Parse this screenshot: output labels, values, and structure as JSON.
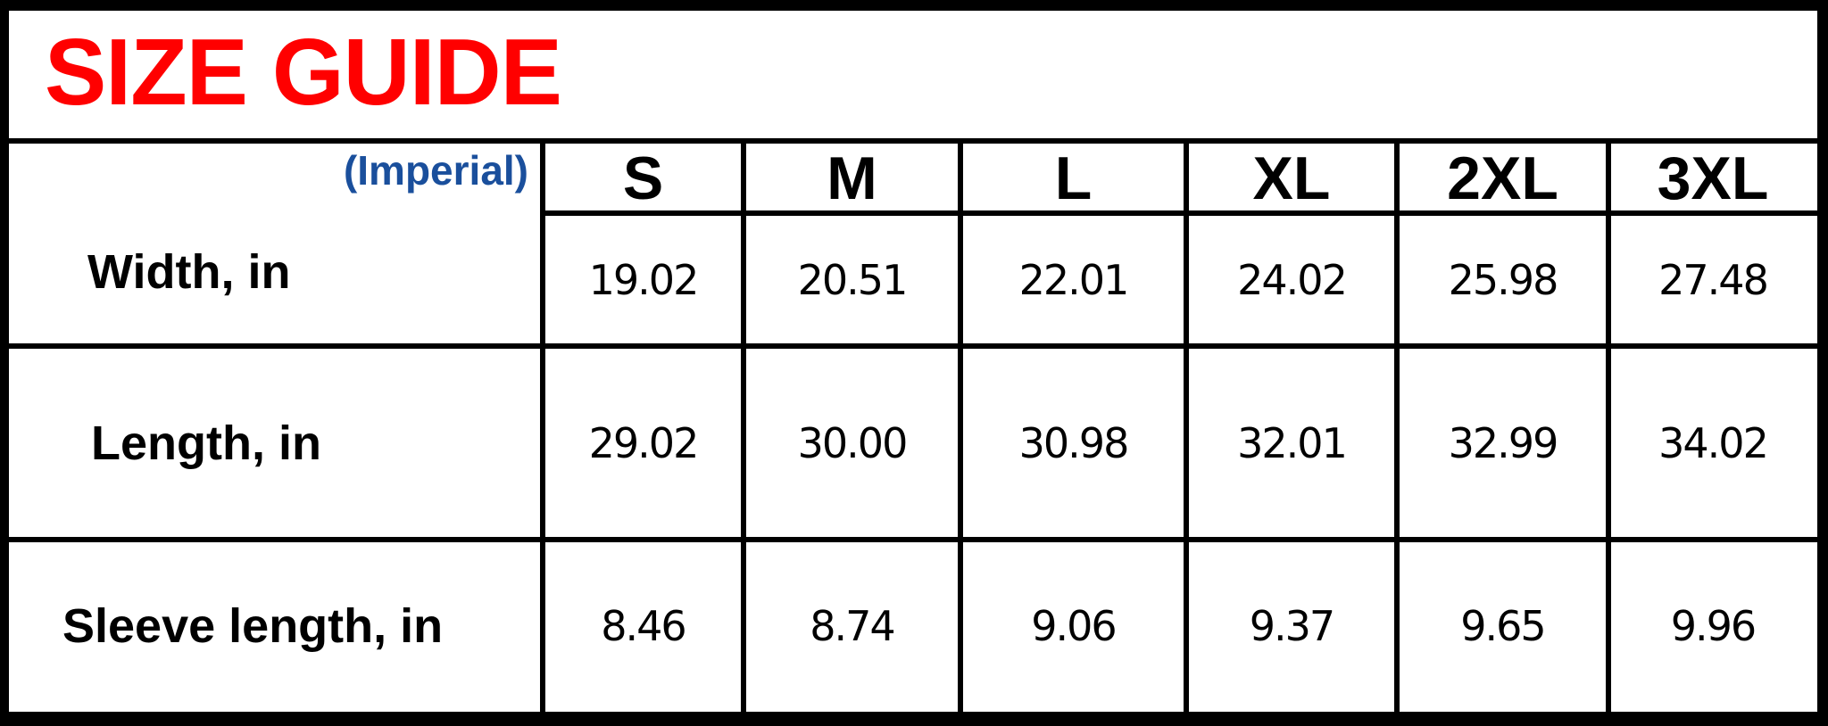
{
  "title": "SIZE GUIDE",
  "unit_system": "(Imperial)",
  "colors": {
    "title": "#ff0000",
    "unit_system": "#1a4f9c",
    "grid": "#000000"
  },
  "sizes": [
    "S",
    "M",
    "L",
    "XL",
    "2XL",
    "3XL"
  ],
  "rows": [
    {
      "label": "Width, in",
      "values": [
        "19.02",
        "20.51",
        "22.01",
        "24.02",
        "25.98",
        "27.48"
      ]
    },
    {
      "label": "Length, in",
      "values": [
        "29.02",
        "30.00",
        "30.98",
        "32.01",
        "32.99",
        "34.02"
      ]
    },
    {
      "label": "Sleeve length, in",
      "values": [
        "8.46",
        "8.74",
        "9.06",
        "9.37",
        "9.65",
        "9.96"
      ]
    }
  ]
}
